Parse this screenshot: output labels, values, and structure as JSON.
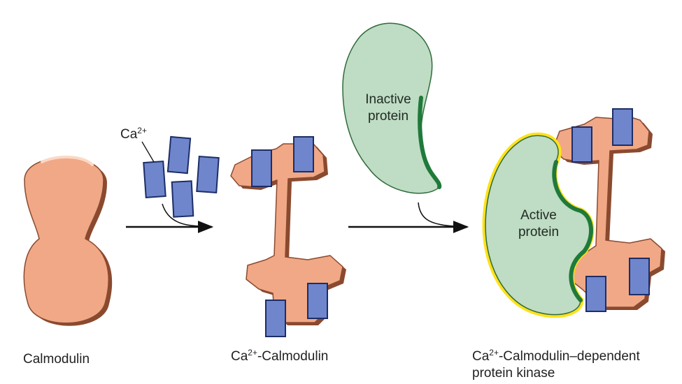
{
  "colors": {
    "calmodulin_fill": "#f1a886",
    "calmodulin_edge": "#8a4a2f",
    "protein_fill": "#bfdcc4",
    "protein_edge": "#1f7a3a",
    "active_halo": "#ffe21a",
    "ion_fill": "#6f86cc",
    "ion_edge": "#1d2d66",
    "arrow": "#111111"
  },
  "labels": {
    "calmodulin": "Calmodulin",
    "ca_ion": {
      "base": "Ca",
      "charge": "2+"
    },
    "ca_calmodulin": {
      "base": "Ca",
      "charge": "2+",
      "suffix": "-Calmodulin"
    },
    "kinase": {
      "base": "Ca",
      "charge": "2+",
      "suffix": "-Calmodulin–dependent",
      "line2": "protein kinase"
    }
  },
  "proteins": {
    "inactive": {
      "line1": "Inactive",
      "line2": "protein"
    },
    "active": {
      "line1": "Active",
      "line2": "protein"
    }
  },
  "icons": {
    "ion": "ca-ion-square-icon",
    "arrow": "reaction-arrow-icon"
  }
}
